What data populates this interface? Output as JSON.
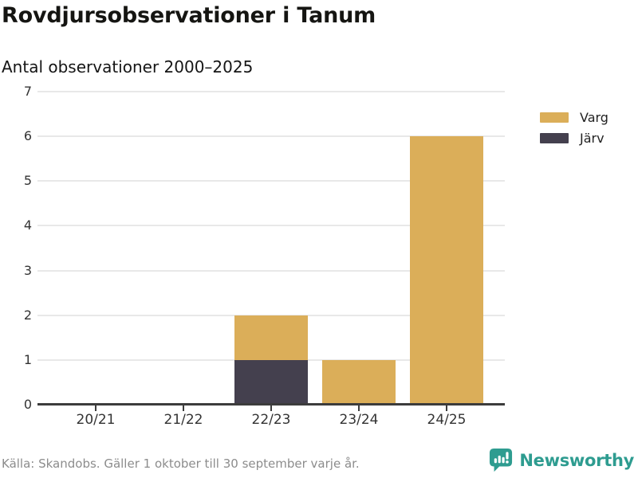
{
  "header": {
    "title": "Rovdjursobservationer i Tanum",
    "subtitle": "Antal observationer 2000–2025"
  },
  "chart_data": {
    "type": "bar",
    "stacked": true,
    "title": "Rovdjursobservationer i Tanum",
    "subtitle": "Antal observationer 2000–2025",
    "xlabel": "",
    "ylabel": "",
    "categories": [
      "20/21",
      "21/22",
      "22/23",
      "23/24",
      "24/25"
    ],
    "series": [
      {
        "name": "Varg",
        "key": "varg",
        "color": "#dbae59",
        "values": [
          0,
          0,
          1,
          1,
          6
        ]
      },
      {
        "name": "Järv",
        "key": "jarv",
        "color": "#44404e",
        "values": [
          0,
          0,
          1,
          0,
          0
        ]
      }
    ],
    "stack_order_bottom_to_top": [
      "Järv",
      "Varg"
    ],
    "ylim": [
      0,
      7
    ],
    "yticks": [
      0,
      1,
      2,
      3,
      4,
      5,
      6,
      7
    ],
    "grid": true,
    "legend_position": "top-right"
  },
  "footer": {
    "source": "Källa: Skandobs. Gäller 1 oktober till 30 september varje år.",
    "brand": "Newsworthy"
  },
  "icons": {
    "brand_icon": "newsworthy-speech-bubble-bar-chart-exclamation-icon"
  },
  "colors": {
    "varg": "#dbae59",
    "jarv": "#44404e",
    "brand_teal": "#2e9c90",
    "gridline": "#e8e8e8",
    "axis": "#3c3c3c",
    "text": "#151515",
    "muted_text": "#8c8c8c"
  }
}
